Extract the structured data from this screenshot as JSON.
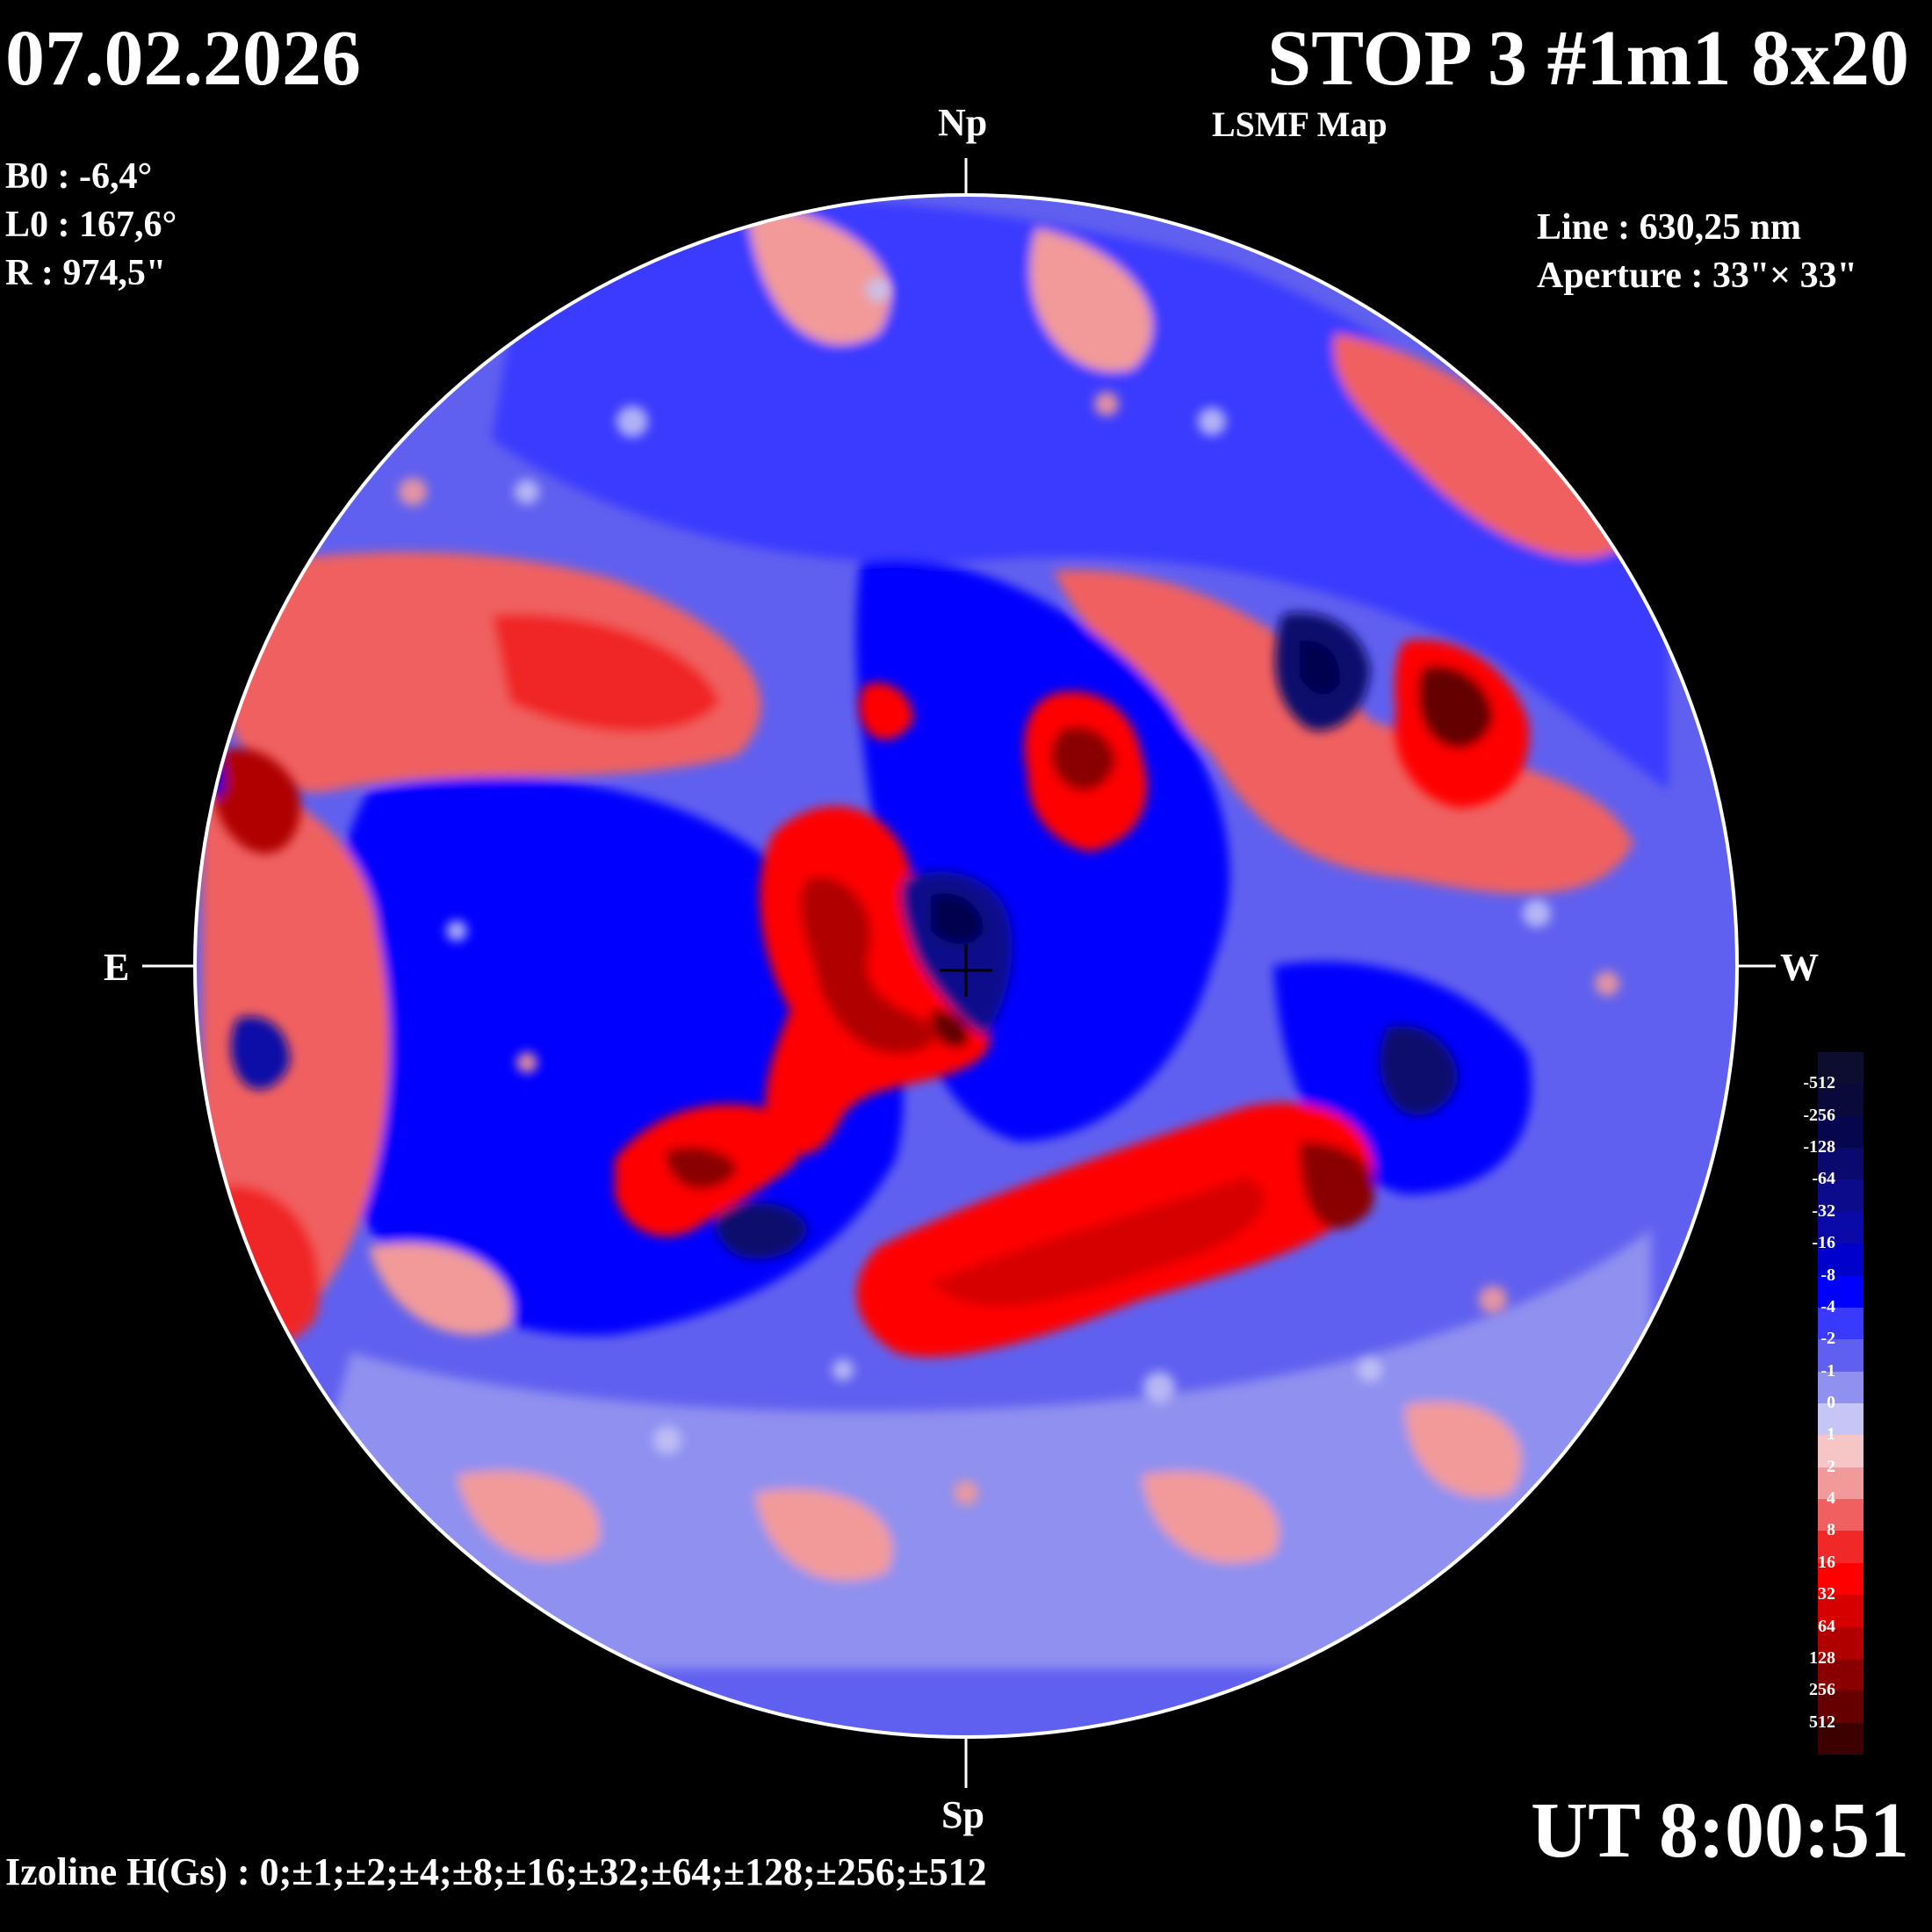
{
  "header": {
    "date": "07.02.2026",
    "title": "STOP 3 #1m1 8x20",
    "subtitle": "LSMF  Map"
  },
  "params_left": {
    "b0": "B0 : -6,4°",
    "l0": "L0 : 167,6°",
    "r": "R  : 974,5\""
  },
  "params_right": {
    "line": "Line :  630,25 nm",
    "aperture": "Aperture : 33\"× 33\""
  },
  "directions": {
    "north": "Np",
    "south": "Sp",
    "east": "E",
    "west": "W"
  },
  "time": "UT 8:00:51",
  "izoline": "Izoline H(Gs) : 0;±1;±2;±4;±8;±16;±32;±64;±128;±256;±512",
  "legend": {
    "labels": [
      "-512",
      "-256",
      "-128",
      "-64",
      "-32",
      "-16",
      "-8",
      "-4",
      "-2",
      "-1",
      "0",
      "1",
      "2",
      "4",
      "8",
      "16",
      "32",
      "64",
      "128",
      "256",
      "512"
    ],
    "colors": [
      "#0a0a3a",
      "#06064f",
      "#0a0a6e",
      "#0b0b8c",
      "#0a0aa8",
      "#0000cc",
      "#0000ff",
      "#3a3aff",
      "#6060f0",
      "#9090f0",
      "#c6c6f6",
      "#f6c6c6",
      "#f29a9a",
      "#f06060",
      "#f02828",
      "#ff0000",
      "#d60000",
      "#b00000",
      "#8a0000",
      "#640000",
      "#3c0000"
    ]
  },
  "colors": {
    "background": "#000000",
    "positive_strong": "#b00000",
    "negative_strong": "#0000cc"
  }
}
